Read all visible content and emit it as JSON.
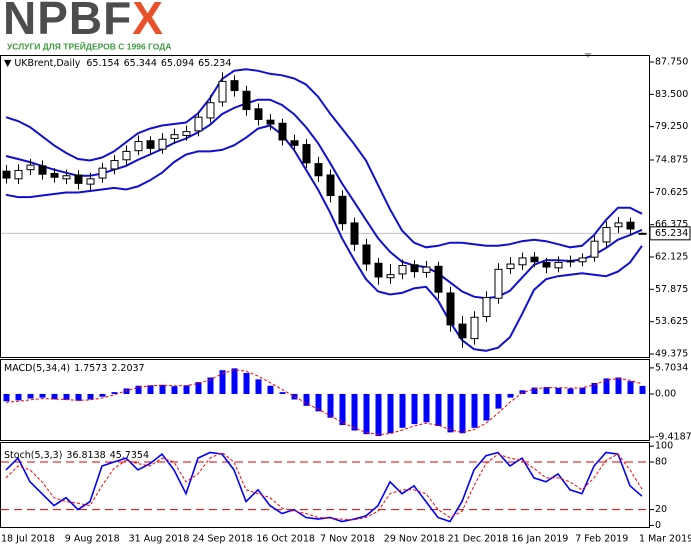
{
  "logo": {
    "brand": "NPBF",
    "brand_accent": "X",
    "tagline": "УСЛУГИ ДЛЯ ТРЕЙДЕРОВ С 1996 ГОДА"
  },
  "chart_data": [
    {
      "type": "candlestick",
      "title": "UKBrent,Daily",
      "open": [
        73.4,
        72.4,
        73.6,
        74.1,
        73.1,
        72.4,
        72.9,
        71.7,
        72.5,
        73.7,
        74.9,
        76.1,
        77.4,
        76.3,
        77.7,
        78.1,
        78.7,
        80.4,
        82.5,
        85.3,
        83.9,
        81.6,
        80.1,
        79.7,
        77.4,
        76.9,
        74.4,
        72.9,
        70.1,
        66.6,
        63.7,
        61.3,
        59.4,
        59.9,
        61.1,
        60.1,
        60.9,
        57.4,
        53.3,
        51.4,
        54.3,
        56.7,
        60.6,
        61.1,
        62.1,
        61.4,
        60.7,
        61.5,
        61.5,
        62.1,
        64.1,
        66.1,
        66.7,
        65.154
      ],
      "high": [
        74.2,
        74.3,
        75.0,
        74.8,
        73.8,
        73.6,
        73.5,
        73.2,
        74.5,
        75.5,
        76.8,
        78.1,
        78.0,
        78.4,
        79.0,
        79.4,
        81.2,
        83.4,
        86.4,
        86.0,
        84.6,
        82.3,
        80.9,
        80.3,
        78.2,
        77.6,
        75.3,
        73.6,
        70.9,
        67.3,
        64.5,
        62.0,
        61.2,
        61.8,
        61.7,
        61.6,
        61.5,
        58.2,
        54.4,
        55.0,
        57.6,
        61.3,
        62.1,
        62.7,
        62.8,
        62.0,
        62.2,
        62.3,
        62.6,
        64.9,
        66.8,
        67.4,
        67.3,
        65.344
      ],
      "low": [
        71.8,
        71.7,
        72.9,
        72.3,
        71.9,
        71.7,
        71.0,
        70.9,
        71.9,
        73.0,
        74.2,
        75.5,
        75.6,
        75.7,
        77.0,
        77.4,
        78.0,
        79.8,
        81.9,
        83.2,
        80.7,
        79.4,
        78.8,
        76.8,
        76.0,
        73.8,
        72.0,
        69.3,
        65.6,
        62.9,
        60.3,
        58.5,
        58.6,
        59.2,
        59.4,
        59.4,
        56.6,
        52.3,
        50.2,
        50.6,
        53.6,
        56.0,
        59.9,
        60.4,
        60.8,
        60.0,
        60.1,
        60.8,
        60.9,
        61.5,
        63.4,
        65.3,
        65.0,
        65.094
      ],
      "close": [
        72.5,
        73.5,
        74.2,
        73.0,
        72.6,
        72.8,
        71.8,
        72.4,
        73.8,
        74.8,
        76.0,
        77.3,
        76.4,
        77.6,
        78.2,
        78.6,
        80.5,
        82.4,
        85.2,
        84.0,
        81.5,
        80.2,
        79.6,
        77.5,
        76.8,
        74.5,
        72.8,
        70.2,
        66.5,
        63.8,
        61.2,
        59.5,
        59.8,
        61.0,
        60.2,
        60.8,
        57.5,
        53.2,
        51.5,
        54.2,
        56.8,
        60.5,
        61.2,
        62.0,
        61.5,
        60.8,
        61.4,
        61.6,
        62.0,
        64.2,
        66.0,
        66.6,
        65.8,
        65.234
      ],
      "series": [
        {
          "color": "#1010d0",
          "values": [
            80.5,
            80.0,
            79.2,
            78.0,
            76.8,
            75.8,
            75.0,
            74.8,
            75.2,
            76.0,
            77.2,
            78.4,
            79.0,
            79.4,
            79.6,
            79.8,
            81.0,
            83.0,
            85.5,
            86.6,
            86.8,
            86.6,
            86.2,
            86.0,
            85.6,
            84.8,
            83.2,
            81.0,
            79.0,
            77.0,
            74.8,
            71.6,
            68.4,
            65.6,
            64.0,
            63.4,
            63.6,
            64.0,
            64.0,
            63.8,
            63.6,
            63.6,
            63.8,
            64.2,
            64.4,
            64.2,
            63.8,
            63.4,
            63.6,
            65.0,
            67.0,
            68.6,
            68.6,
            67.8
          ]
        },
        {
          "color": "#1010d0",
          "values": [
            75.4,
            75.0,
            74.6,
            74.1,
            73.6,
            73.2,
            72.8,
            72.8,
            73.1,
            73.6,
            74.1,
            74.9,
            75.6,
            76.3,
            77.1,
            77.7,
            78.5,
            79.5,
            80.9,
            81.7,
            82.3,
            82.8,
            82.8,
            82.1,
            80.9,
            79.2,
            77.1,
            74.5,
            71.8,
            69.4,
            67.0,
            64.6,
            62.8,
            61.5,
            61.0,
            60.8,
            60.0,
            58.8,
            57.6,
            56.9,
            56.7,
            56.9,
            57.7,
            59.4,
            61.1,
            61.7,
            61.7,
            61.6,
            61.8,
            62.4,
            63.3,
            64.4,
            65.0,
            65.7
          ]
        },
        {
          "color": "#1010d0",
          "values": [
            70.3,
            70.0,
            70.0,
            70.2,
            70.4,
            70.6,
            70.6,
            70.8,
            71.0,
            71.2,
            71.0,
            71.4,
            72.2,
            73.2,
            74.6,
            75.6,
            76.0,
            76.0,
            76.2,
            76.8,
            77.8,
            79.0,
            79.4,
            78.2,
            76.2,
            73.6,
            71.0,
            68.0,
            64.6,
            61.8,
            59.2,
            57.6,
            57.2,
            57.4,
            58.0,
            58.2,
            56.4,
            53.6,
            51.2,
            50.0,
            49.8,
            50.2,
            51.6,
            54.6,
            57.8,
            59.2,
            59.6,
            59.8,
            60.0,
            59.8,
            59.6,
            60.2,
            61.4,
            63.6
          ]
        }
      ],
      "ylim": [
        48.98,
        88.54
      ],
      "yticks": [
        {
          "value": 87.75,
          "label": "87.750"
        },
        {
          "value": 83.5,
          "label": "83.500"
        },
        {
          "value": 79.25,
          "label": "79.250"
        },
        {
          "value": 74.875,
          "label": "74.875"
        },
        {
          "value": 70.625,
          "label": "70.625"
        },
        {
          "value": 66.375,
          "label": "66.375"
        },
        {
          "value": 62.125,
          "label": "62.125"
        },
        {
          "value": 57.875,
          "label": "57.875"
        },
        {
          "value": 53.625,
          "label": "53.625"
        },
        {
          "value": 49.375,
          "label": "49.375"
        }
      ]
    },
    {
      "type": "bar",
      "title": "MACD(5,34,4)",
      "color": "#0000ff",
      "values": [
        -1.6,
        -1.4,
        -1.0,
        -0.8,
        -1.2,
        -1.3,
        -1.5,
        -1.2,
        -0.6,
        0.4,
        1.2,
        1.8,
        1.9,
        2.0,
        1.7,
        1.9,
        2.6,
        3.6,
        5.2,
        5.6,
        4.6,
        3.2,
        1.8,
        0.4,
        -1.2,
        -2.6,
        -3.8,
        -5.2,
        -6.8,
        -8.0,
        -8.8,
        -9.2,
        -8.6,
        -7.4,
        -6.6,
        -6.2,
        -7.0,
        -8.4,
        -8.6,
        -7.4,
        -5.8,
        -3.2,
        -0.8,
        0.8,
        1.4,
        1.5,
        1.3,
        1.2,
        1.4,
        2.4,
        3.4,
        3.6,
        2.8,
        1.7573
      ],
      "signal": {
        "color": "#ff0000",
        "dashed": true,
        "values": [
          -1.8,
          -1.6,
          -1.3,
          -1.0,
          -1.1,
          -1.2,
          -1.4,
          -1.3,
          -0.9,
          -0.2,
          0.7,
          1.4,
          1.8,
          1.9,
          1.8,
          1.8,
          2.3,
          3.1,
          4.4,
          5.3,
          5.0,
          3.9,
          2.5,
          1.0,
          -0.5,
          -2.0,
          -3.3,
          -4.7,
          -6.2,
          -7.4,
          -8.4,
          -8.9,
          -8.7,
          -7.9,
          -7.0,
          -6.4,
          -6.8,
          -7.8,
          -8.4,
          -7.8,
          -6.4,
          -4.2,
          -1.8,
          0.2,
          1.1,
          1.4,
          1.4,
          1.3,
          1.3,
          2.0,
          3.0,
          3.4,
          3.0,
          2.2037
        ]
      },
      "ylim": [
        -10.07,
        7.43
      ],
      "yticks": [
        5.7034,
        {
          "value": 0,
          "label": "0.00"
        },
        -9.4187
      ]
    },
    {
      "type": "line",
      "title": "Stoch(5,3,3)",
      "series": [
        {
          "color": "#0000ff",
          "dashed": false,
          "values": [
            70,
            85,
            55,
            40,
            25,
            35,
            20,
            30,
            75,
            80,
            85,
            70,
            78,
            90,
            70,
            40,
            85,
            92,
            90,
            70,
            30,
            45,
            25,
            15,
            20,
            10,
            8,
            10,
            5,
            8,
            12,
            25,
            55,
            40,
            50,
            30,
            10,
            5,
            30,
            70,
            88,
            92,
            75,
            85,
            60,
            55,
            65,
            45,
            40,
            75,
            92,
            90,
            50,
            36.8138
          ]
        },
        {
          "color": "#ff0000",
          "dashed": true,
          "values": [
            60,
            75,
            70,
            55,
            35,
            30,
            28,
            25,
            50,
            72,
            82,
            78,
            75,
            85,
            80,
            55,
            65,
            85,
            92,
            80,
            45,
            40,
            35,
            22,
            18,
            15,
            10,
            9,
            8,
            7,
            10,
            18,
            40,
            45,
            45,
            40,
            20,
            10,
            18,
            50,
            78,
            90,
            85,
            82,
            72,
            60,
            60,
            55,
            45,
            60,
            82,
            90,
            70,
            45.7354
          ]
        }
      ],
      "levels": [
        80,
        20
      ],
      "level_color": "#e00000",
      "ylim": [
        -2,
        104
      ],
      "yticks": [
        100,
        80,
        20,
        0
      ],
      "xtick_labels": [
        "18 Jul 2018",
        "9 Aug 2018",
        "31 Aug 2018",
        "24 Sep 2018",
        "16 Oct 2018",
        "7 Nov 2018",
        "29 Nov 2018",
        "21 Dec 2018",
        "16 Jan 2019",
        "7 Feb 2019",
        "1 Mar 2019"
      ]
    }
  ]
}
